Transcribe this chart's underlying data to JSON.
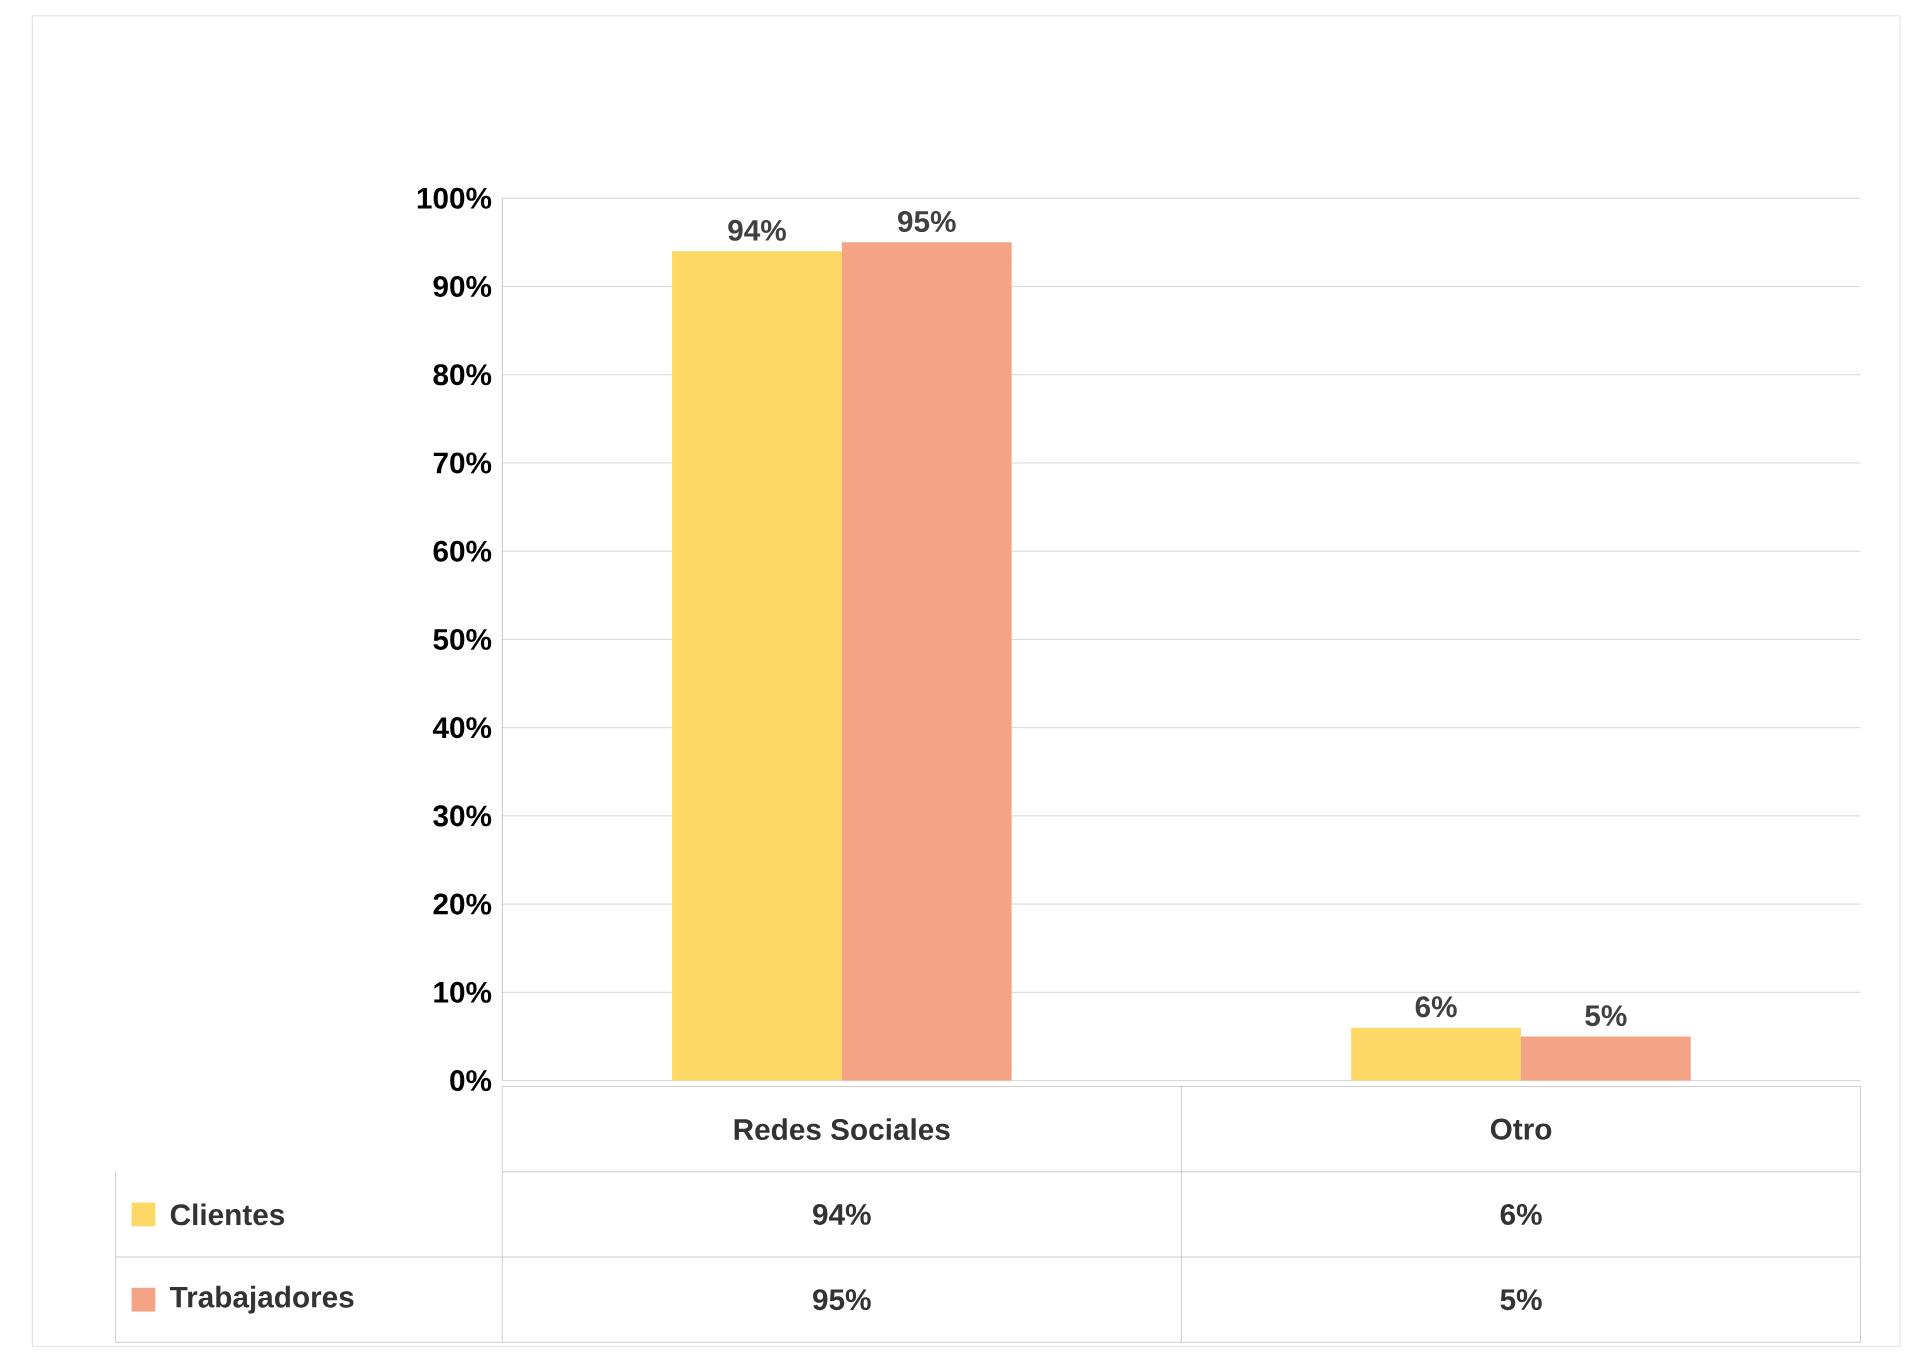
{
  "chart_data": {
    "type": "bar",
    "categories": [
      "Redes Sociales",
      "Otro"
    ],
    "series": [
      {
        "name": "Clientes",
        "color": "#fdd866",
        "values": [
          94,
          6
        ],
        "value_labels": [
          "94%",
          "6%"
        ]
      },
      {
        "name": "Trabajadores",
        "color": "#f4a385",
        "values": [
          95,
          5
        ],
        "value_labels": [
          "95%",
          "5%"
        ]
      }
    ],
    "ylim": [
      0,
      100
    ],
    "yticks": [
      {
        "value": 0,
        "label": "0%"
      },
      {
        "value": 10,
        "label": "10%"
      },
      {
        "value": 20,
        "label": "20%"
      },
      {
        "value": 30,
        "label": "30%"
      },
      {
        "value": 40,
        "label": "40%"
      },
      {
        "value": 50,
        "label": "50%"
      },
      {
        "value": 60,
        "label": "60%"
      },
      {
        "value": 70,
        "label": "70%"
      },
      {
        "value": 80,
        "label": "80%"
      },
      {
        "value": 90,
        "label": "90%"
      },
      {
        "value": 100,
        "label": "100%"
      }
    ],
    "grid": "y",
    "legend": "bottom"
  }
}
